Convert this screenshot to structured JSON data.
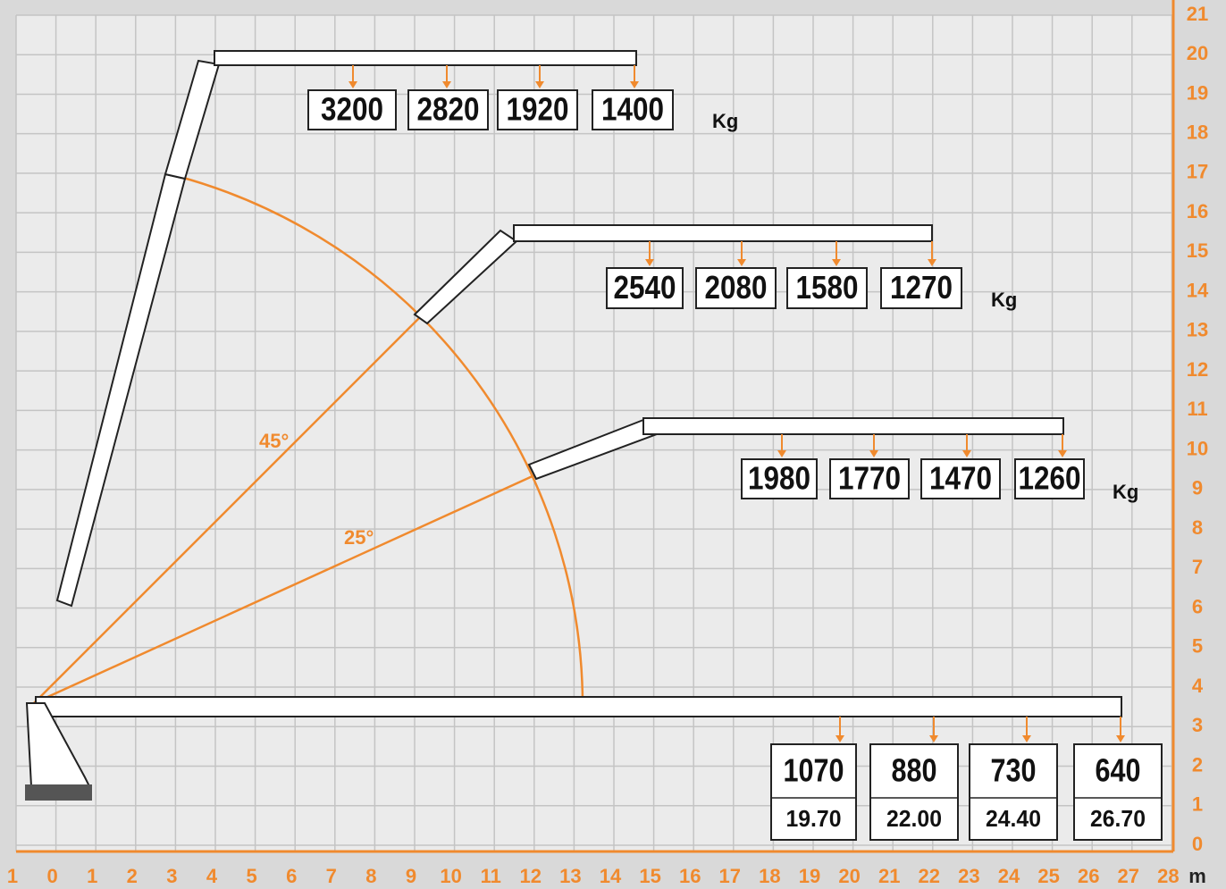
{
  "x_axis": {
    "labels": [
      "1",
      "0",
      "1",
      "2",
      "3",
      "4",
      "5",
      "6",
      "7",
      "8",
      "9",
      "10",
      "11",
      "12",
      "13",
      "14",
      "15",
      "16",
      "17",
      "18",
      "19",
      "20",
      "21",
      "22",
      "23",
      "24",
      "25",
      "26",
      "27",
      "28"
    ],
    "unit": "m"
  },
  "y_axis": {
    "labels": [
      "0",
      "1",
      "2",
      "3",
      "4",
      "5",
      "6",
      "7",
      "8",
      "9",
      "10",
      "11",
      "12",
      "13",
      "14",
      "15",
      "16",
      "17",
      "18",
      "19",
      "20",
      "21"
    ]
  },
  "angles": [
    "45°",
    "25°"
  ],
  "load_groups": [
    {
      "loads": [
        "3200",
        "2820",
        "1920",
        "1400"
      ],
      "unit": "Kg"
    },
    {
      "loads": [
        "2540",
        "2080",
        "1580",
        "1270"
      ],
      "unit": "Kg"
    },
    {
      "loads": [
        "1980",
        "1770",
        "1470",
        "1260"
      ],
      "unit": "Kg"
    },
    {
      "loads": [
        "1070",
        "880",
        "730",
        "640"
      ],
      "reaches": [
        "19.70",
        "22.00",
        "24.40",
        "26.70"
      ]
    }
  ]
}
